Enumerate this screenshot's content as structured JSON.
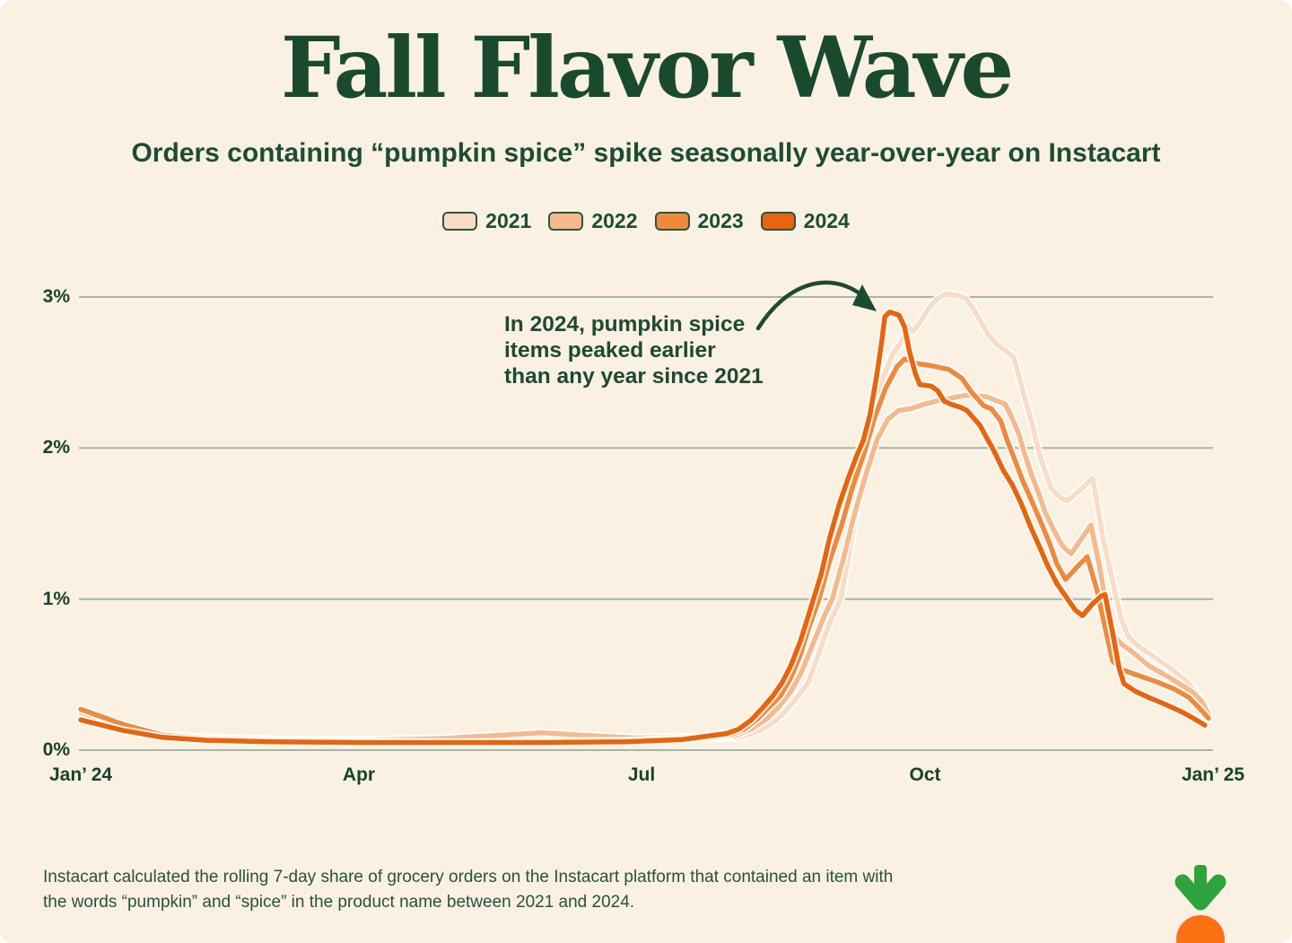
{
  "page": {
    "title": "Fall Flavor Wave",
    "subtitle": "Orders containing “pumpkin spice” spike seasonally year-over-year on Instacart",
    "footnote_line1": "Instacart calculated the rolling 7-day share of grocery orders on the Instacart platform that contained an item with",
    "footnote_line2": "the words “pumpkin” and “spice” in the product name between 2021 and 2024."
  },
  "annotation": {
    "line1": "In 2024, pumpkin spice",
    "line2": "items peaked earlier",
    "line3": "than any year since 2021"
  },
  "colors": {
    "background": "#FAF1E3",
    "heading_green": "#1A4A2E",
    "text_green": "#1C4D33",
    "gridline": "#A4B6A6",
    "annotation_arrow": "#1D4A32",
    "logo_leaf_green": "#2EA33C",
    "logo_carrot_orange": "#FC7014"
  },
  "chart_data": {
    "type": "line",
    "title": "Fall Flavor Wave",
    "subtitle": "Orders containing “pumpkin spice” spike seasonally year-over-year on Instacart",
    "xlabel": "",
    "ylabel": "",
    "grid": "horizontal",
    "legend_position": "top",
    "x_axis": {
      "tick_labels": [
        "Jan’ 24",
        "Apr",
        "Jul",
        "Oct",
        "Jan’ 25"
      ],
      "tick_months": [
        0,
        3,
        6,
        9,
        12
      ],
      "range_months": [
        0,
        12
      ]
    },
    "y_axis": {
      "tick_labels": [
        "0%",
        "1%",
        "2%",
        "3%"
      ],
      "tick_values": [
        0,
        1,
        2,
        3
      ],
      "range": [
        0,
        3
      ],
      "unit": "share of grocery orders (%)"
    },
    "series": [
      {
        "name": "2021",
        "color": "#F9DCC3",
        "points": [
          [
            0,
            0.24
          ],
          [
            0.45,
            0.15
          ],
          [
            0.86,
            0.095
          ],
          [
            1.34,
            0.075
          ],
          [
            2,
            0.065
          ],
          [
            3,
            0.06
          ],
          [
            4,
            0.065
          ],
          [
            4.7,
            0.09
          ],
          [
            5.1,
            0.1
          ],
          [
            5.6,
            0.085
          ],
          [
            6.1,
            0.07
          ],
          [
            6.6,
            0.08
          ],
          [
            7.01,
            0.085
          ],
          [
            7.2,
            0.125
          ],
          [
            7.36,
            0.18
          ],
          [
            7.49,
            0.255
          ],
          [
            7.61,
            0.345
          ],
          [
            7.73,
            0.44
          ],
          [
            7.84,
            0.63
          ],
          [
            7.96,
            0.84
          ],
          [
            8.08,
            1.0
          ],
          [
            8.18,
            1.34
          ],
          [
            8.28,
            1.7
          ],
          [
            8.37,
            2.06
          ],
          [
            8.47,
            2.32
          ],
          [
            8.54,
            2.48
          ],
          [
            8.63,
            2.62
          ],
          [
            8.73,
            2.71
          ],
          [
            8.79,
            2.81
          ],
          [
            8.85,
            2.77
          ],
          [
            8.92,
            2.83
          ],
          [
            9.01,
            2.92
          ],
          [
            9.11,
            2.99
          ],
          [
            9.2,
            3.02
          ],
          [
            9.33,
            3.01
          ],
          [
            9.41,
            2.99
          ],
          [
            9.49,
            2.92
          ],
          [
            9.59,
            2.81
          ],
          [
            9.66,
            2.74
          ],
          [
            9.75,
            2.68
          ],
          [
            9.84,
            2.64
          ],
          [
            9.92,
            2.6
          ],
          [
            10.01,
            2.39
          ],
          [
            10.11,
            2.17
          ],
          [
            10.2,
            1.94
          ],
          [
            10.32,
            1.73
          ],
          [
            10.42,
            1.67
          ],
          [
            10.49,
            1.65
          ],
          [
            10.64,
            1.73
          ],
          [
            10.76,
            1.8
          ],
          [
            10.87,
            1.4
          ],
          [
            10.97,
            1.12
          ],
          [
            11.06,
            0.87
          ],
          [
            11.14,
            0.75
          ],
          [
            11.26,
            0.68
          ],
          [
            11.43,
            0.61
          ],
          [
            11.59,
            0.54
          ],
          [
            11.75,
            0.46
          ],
          [
            11.86,
            0.38
          ],
          [
            11.97,
            0.27
          ]
        ]
      },
      {
        "name": "2022",
        "color": "#F5B98C",
        "points": [
          [
            0,
            0.25
          ],
          [
            0.45,
            0.155
          ],
          [
            0.86,
            0.1
          ],
          [
            1.34,
            0.08
          ],
          [
            2,
            0.07
          ],
          [
            2.9,
            0.065
          ],
          [
            3.8,
            0.075
          ],
          [
            4.5,
            0.1
          ],
          [
            4.9,
            0.115
          ],
          [
            5.3,
            0.1
          ],
          [
            5.9,
            0.08
          ],
          [
            6.4,
            0.085
          ],
          [
            6.96,
            0.095
          ],
          [
            7.13,
            0.14
          ],
          [
            7.3,
            0.21
          ],
          [
            7.42,
            0.285
          ],
          [
            7.54,
            0.38
          ],
          [
            7.65,
            0.5
          ],
          [
            7.77,
            0.68
          ],
          [
            7.9,
            0.88
          ],
          [
            7.99,
            1.0
          ],
          [
            8.11,
            1.27
          ],
          [
            8.22,
            1.55
          ],
          [
            8.35,
            1.83
          ],
          [
            8.47,
            2.06
          ],
          [
            8.58,
            2.19
          ],
          [
            8.7,
            2.25
          ],
          [
            8.82,
            2.26
          ],
          [
            8.97,
            2.29
          ],
          [
            9.09,
            2.31
          ],
          [
            9.25,
            2.33
          ],
          [
            9.42,
            2.35
          ],
          [
            9.63,
            2.34
          ],
          [
            9.83,
            2.29
          ],
          [
            9.9,
            2.2
          ],
          [
            9.97,
            2.1
          ],
          [
            10.03,
            1.97
          ],
          [
            10.11,
            1.82
          ],
          [
            10.19,
            1.69
          ],
          [
            10.25,
            1.58
          ],
          [
            10.35,
            1.45
          ],
          [
            10.44,
            1.35
          ],
          [
            10.53,
            1.3
          ],
          [
            10.64,
            1.4
          ],
          [
            10.74,
            1.49
          ],
          [
            10.83,
            1.22
          ],
          [
            10.9,
            0.97
          ],
          [
            10.99,
            0.75
          ],
          [
            11.07,
            0.7
          ],
          [
            11.18,
            0.65
          ],
          [
            11.35,
            0.56
          ],
          [
            11.52,
            0.5
          ],
          [
            11.68,
            0.44
          ],
          [
            11.83,
            0.38
          ],
          [
            11.92,
            0.32
          ],
          [
            11.99,
            0.235
          ]
        ]
      },
      {
        "name": "2023",
        "color": "#EF8A3D",
        "points": [
          [
            0,
            0.27
          ],
          [
            0.45,
            0.17
          ],
          [
            0.86,
            0.1
          ],
          [
            1.34,
            0.075
          ],
          [
            2,
            0.06
          ],
          [
            3,
            0.055
          ],
          [
            4,
            0.05
          ],
          [
            5,
            0.055
          ],
          [
            5.8,
            0.06
          ],
          [
            6.4,
            0.075
          ],
          [
            6.92,
            0.105
          ],
          [
            7.06,
            0.14
          ],
          [
            7.2,
            0.21
          ],
          [
            7.32,
            0.285
          ],
          [
            7.44,
            0.36
          ],
          [
            7.55,
            0.48
          ],
          [
            7.65,
            0.63
          ],
          [
            7.74,
            0.81
          ],
          [
            7.85,
            1.0
          ],
          [
            7.96,
            1.25
          ],
          [
            8.09,
            1.49
          ],
          [
            8.2,
            1.73
          ],
          [
            8.33,
            1.97
          ],
          [
            8.44,
            2.2
          ],
          [
            8.56,
            2.4
          ],
          [
            8.68,
            2.54
          ],
          [
            8.76,
            2.59
          ],
          [
            8.89,
            2.56
          ],
          [
            9.04,
            2.545
          ],
          [
            9.23,
            2.52
          ],
          [
            9.37,
            2.46
          ],
          [
            9.47,
            2.37
          ],
          [
            9.6,
            2.28
          ],
          [
            9.68,
            2.26
          ],
          [
            9.78,
            2.18
          ],
          [
            9.85,
            2.05
          ],
          [
            9.92,
            1.94
          ],
          [
            10.01,
            1.79
          ],
          [
            10.11,
            1.65
          ],
          [
            10.2,
            1.52
          ],
          [
            10.3,
            1.37
          ],
          [
            10.38,
            1.23
          ],
          [
            10.47,
            1.13
          ],
          [
            10.59,
            1.21
          ],
          [
            10.7,
            1.28
          ],
          [
            10.8,
            1.07
          ],
          [
            10.87,
            0.87
          ],
          [
            10.97,
            0.59
          ],
          [
            11.08,
            0.53
          ],
          [
            11.26,
            0.49
          ],
          [
            11.45,
            0.45
          ],
          [
            11.64,
            0.4
          ],
          [
            11.78,
            0.35
          ],
          [
            11.89,
            0.28
          ],
          [
            11.99,
            0.21
          ]
        ]
      },
      {
        "name": "2024",
        "color": "#E8650D",
        "points": [
          [
            0,
            0.2
          ],
          [
            0.45,
            0.13
          ],
          [
            0.86,
            0.085
          ],
          [
            1.34,
            0.065
          ],
          [
            2,
            0.055
          ],
          [
            3,
            0.05
          ],
          [
            4,
            0.05
          ],
          [
            4.9,
            0.05
          ],
          [
            5.8,
            0.055
          ],
          [
            6.4,
            0.07
          ],
          [
            6.87,
            0.11
          ],
          [
            7.0,
            0.14
          ],
          [
            7.13,
            0.2
          ],
          [
            7.25,
            0.28
          ],
          [
            7.36,
            0.36
          ],
          [
            7.46,
            0.45
          ],
          [
            7.55,
            0.56
          ],
          [
            7.65,
            0.72
          ],
          [
            7.73,
            0.88
          ],
          [
            7.79,
            1.0
          ],
          [
            7.87,
            1.16
          ],
          [
            7.96,
            1.4
          ],
          [
            8.06,
            1.62
          ],
          [
            8.16,
            1.8
          ],
          [
            8.25,
            1.95
          ],
          [
            8.32,
            2.05
          ],
          [
            8.39,
            2.22
          ],
          [
            8.46,
            2.47
          ],
          [
            8.51,
            2.68
          ],
          [
            8.55,
            2.87
          ],
          [
            8.6,
            2.9
          ],
          [
            8.7,
            2.88
          ],
          [
            8.76,
            2.8
          ],
          [
            8.81,
            2.64
          ],
          [
            8.87,
            2.5
          ],
          [
            8.92,
            2.42
          ],
          [
            9.04,
            2.41
          ],
          [
            9.11,
            2.38
          ],
          [
            9.18,
            2.31
          ],
          [
            9.25,
            2.29
          ],
          [
            9.35,
            2.27
          ],
          [
            9.42,
            2.25
          ],
          [
            9.49,
            2.2
          ],
          [
            9.56,
            2.15
          ],
          [
            9.63,
            2.07
          ],
          [
            9.71,
            1.98
          ],
          [
            9.81,
            1.85
          ],
          [
            9.9,
            1.76
          ],
          [
            10.0,
            1.63
          ],
          [
            10.09,
            1.49
          ],
          [
            10.19,
            1.35
          ],
          [
            10.28,
            1.22
          ],
          [
            10.38,
            1.1
          ],
          [
            10.47,
            1.02
          ],
          [
            10.57,
            0.93
          ],
          [
            10.65,
            0.89
          ],
          [
            10.76,
            0.97
          ],
          [
            10.85,
            1.02
          ],
          [
            10.89,
            1.03
          ],
          [
            10.97,
            0.78
          ],
          [
            11.04,
            0.54
          ],
          [
            11.09,
            0.44
          ],
          [
            11.21,
            0.39
          ],
          [
            11.35,
            0.35
          ],
          [
            11.54,
            0.3
          ],
          [
            11.7,
            0.255
          ],
          [
            11.83,
            0.21
          ],
          [
            11.95,
            0.165
          ]
        ]
      }
    ],
    "annotation": "In 2024, pumpkin spice items peaked earlier than any year since 2021"
  }
}
